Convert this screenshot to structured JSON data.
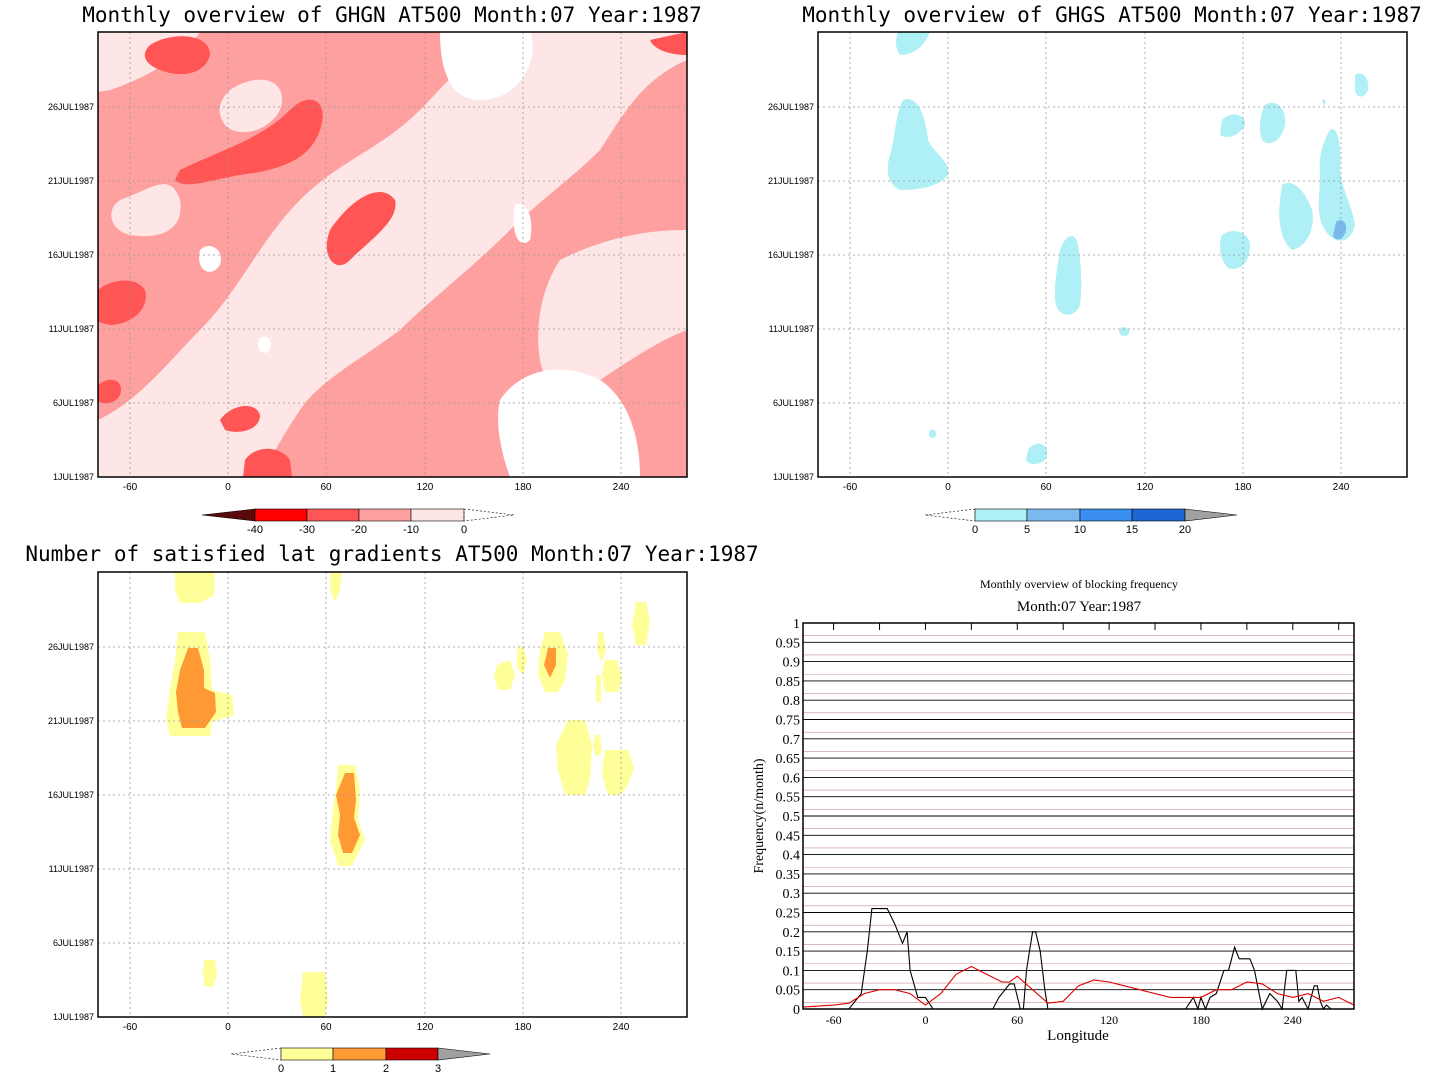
{
  "chart_data": [
    {
      "type": "heatmap",
      "title": "Monthly overview of GHGN AT500 Month:07 Year:1987",
      "x_ticks": [
        "-60",
        "0",
        "60",
        "120",
        "180",
        "240"
      ],
      "y_ticks": [
        "1JUL1987",
        "6JUL1987",
        "11JUL1987",
        "16JUL1987",
        "21JUL1987",
        "26JUL1987"
      ],
      "colorbar": {
        "labels": [
          "-40",
          "-30",
          "-20",
          "-10",
          "0"
        ],
        "colors": [
          "#5a0a0a",
          "#ff0000",
          "#ff5555",
          "#ffa0a0",
          "#ffe6e6"
        ]
      }
    },
    {
      "type": "heatmap",
      "title": "Monthly overview of GHGS AT500 Month:07 Year:1987",
      "x_ticks": [
        "-60",
        "0",
        "60",
        "120",
        "180",
        "240"
      ],
      "y_ticks": [
        "1JUL1987",
        "6JUL1987",
        "11JUL1987",
        "16JUL1987",
        "21JUL1987",
        "26JUL1987"
      ],
      "colorbar": {
        "labels": [
          "0",
          "5",
          "10",
          "15",
          "20"
        ],
        "colors": [
          "#aef0f5",
          "#7ab8f0",
          "#3a8ef0",
          "#1e64d2",
          "#a0a0a0"
        ]
      }
    },
    {
      "type": "heatmap",
      "title": "Number of satisfied lat gradients AT500 Month:07 Year:1987",
      "x_ticks": [
        "-60",
        "0",
        "60",
        "120",
        "180",
        "240"
      ],
      "y_ticks": [
        "1JUL1987",
        "6JUL1987",
        "11JUL1987",
        "16JUL1987",
        "21JUL1987",
        "26JUL1987"
      ],
      "colorbar": {
        "labels": [
          "0",
          "1",
          "2",
          "3"
        ],
        "colors": [
          "#ffff99",
          "#ff9933",
          "#cc0000",
          "#a0a0a0"
        ]
      }
    },
    {
      "type": "line",
      "title": "Monthly overview of blocking frequency",
      "subtitle": "Month:07 Year:1987",
      "xlabel": "Longitude",
      "ylabel": "Frequency(n/month)",
      "x_ticks": [
        "-60",
        "0",
        "60",
        "120",
        "180",
        "240"
      ],
      "y_ticks": [
        "0",
        "0.05",
        "0.1",
        "0.15",
        "0.2",
        "0.25",
        "0.3",
        "0.35",
        "0.4",
        "0.45",
        "0.5",
        "0.55",
        "0.6",
        "0.65",
        "0.7",
        "0.75",
        "0.8",
        "0.85",
        "0.9",
        "0.95",
        "1"
      ],
      "xlim": [
        -80,
        280
      ],
      "ylim": [
        0,
        1
      ],
      "series": [
        {
          "color": "#000000",
          "x": [
            -80,
            -50,
            -42,
            -38,
            -35,
            -30,
            -25,
            -20,
            -15,
            -12,
            -10,
            -5,
            0,
            5,
            10,
            20,
            30,
            40,
            44,
            48,
            55,
            58,
            62,
            64,
            66,
            68,
            70,
            72,
            75,
            78,
            80,
            90,
            100,
            120,
            140,
            160,
            170,
            175,
            178,
            180,
            183,
            186,
            190,
            195,
            198,
            200,
            202,
            205,
            208,
            212,
            215,
            218,
            220,
            225,
            230,
            233,
            236,
            240,
            242,
            244,
            246,
            250,
            252,
            254,
            256,
            258,
            260,
            262,
            265,
            280
          ],
          "y": [
            0,
            0,
            0.04,
            0.15,
            0.26,
            0.26,
            0.26,
            0.22,
            0.17,
            0.2,
            0.1,
            0.03,
            0.03,
            0,
            0,
            0,
            0,
            0,
            0,
            0.03,
            0.065,
            0.065,
            0,
            0,
            0.1,
            0.15,
            0.2,
            0.2,
            0.15,
            0.05,
            0,
            0,
            0,
            0,
            0,
            0,
            0,
            0.03,
            0,
            0.03,
            0,
            0.03,
            0.04,
            0.1,
            0.1,
            0.13,
            0.16,
            0.13,
            0.13,
            0.13,
            0.1,
            0.04,
            0,
            0.04,
            0.02,
            0,
            0.1,
            0.1,
            0.1,
            0.02,
            0.03,
            0,
            0.03,
            0.06,
            0.06,
            0.02,
            0,
            0.01,
            0,
            0
          ]
        },
        {
          "color": "#dd0000",
          "x": [
            -80,
            -60,
            -50,
            -40,
            -30,
            -20,
            -10,
            0,
            10,
            20,
            30,
            40,
            50,
            55,
            60,
            70,
            80,
            90,
            100,
            110,
            120,
            130,
            140,
            160,
            180,
            190,
            200,
            210,
            220,
            230,
            240,
            250,
            260,
            270,
            280
          ],
          "y": [
            0.005,
            0.01,
            0.015,
            0.04,
            0.05,
            0.05,
            0.04,
            0.01,
            0.04,
            0.09,
            0.11,
            0.09,
            0.07,
            0.07,
            0.085,
            0.05,
            0.015,
            0.02,
            0.06,
            0.075,
            0.07,
            0.06,
            0.05,
            0.03,
            0.03,
            0.05,
            0.05,
            0.07,
            0.065,
            0.04,
            0.03,
            0.04,
            0.02,
            0.03,
            0.01
          ]
        }
      ]
    }
  ]
}
